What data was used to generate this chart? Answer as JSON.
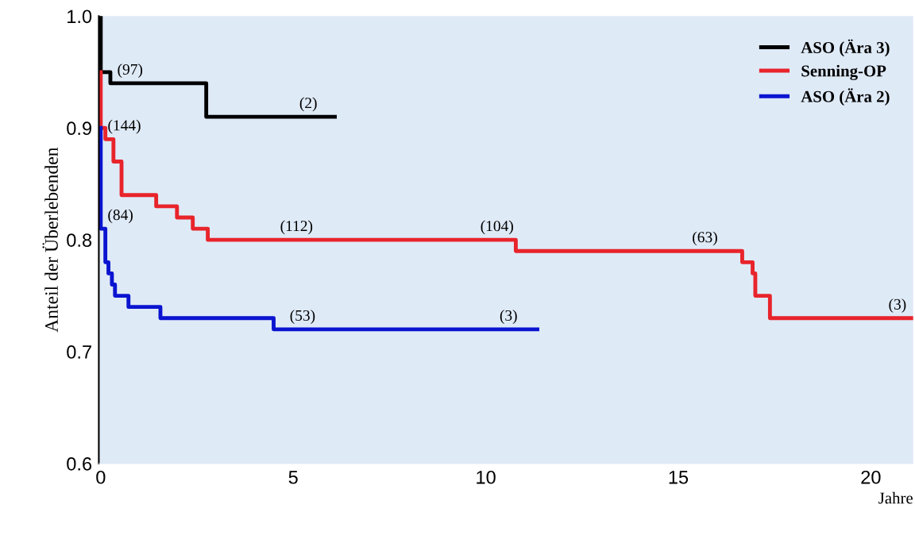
{
  "chart_data": {
    "type": "step",
    "ylabel": "Anteil der Überlebenden",
    "xlabel": "Jahre",
    "xlim": [
      -0.05,
      21.1
    ],
    "xticks": [
      0,
      5,
      10,
      15,
      20
    ],
    "ylim": [
      0.6,
      1.0
    ],
    "yticks": [
      {
        "value": 0.6,
        "label": "0.6"
      },
      {
        "value": 0.7,
        "label": "0.7"
      },
      {
        "value": 0.8,
        "label": "0.8"
      },
      {
        "value": 0.9,
        "label": "0.9"
      },
      {
        "value": 1.0,
        "label": "1.0"
      }
    ],
    "series": [
      {
        "name": "ASO (Ära 3)",
        "color": "#000000",
        "x": [
          0,
          0,
          0.25,
          2.74,
          6.08
        ],
        "values": [
          1.0,
          0.95,
          0.94,
          0.91,
          0.91
        ]
      },
      {
        "name": "Senning-OP",
        "color": "#e8242b",
        "x": [
          0,
          0,
          0.12,
          0.33,
          0.54,
          1.44,
          1.98,
          2.39,
          2.78,
          10.78,
          16.66,
          16.93,
          17.0,
          17.38,
          21.1
        ],
        "values": [
          0.95,
          0.9,
          0.89,
          0.87,
          0.84,
          0.83,
          0.82,
          0.81,
          0.8,
          0.79,
          0.78,
          0.77,
          0.75,
          0.73,
          0.73
        ]
      },
      {
        "name": "ASO (Ära 2)",
        "color": "#0a14d0",
        "x": [
          0,
          0,
          0.12,
          0.2,
          0.29,
          0.37,
          0.72,
          1.55,
          4.49,
          11.34
        ],
        "values": [
          0.9,
          0.81,
          0.78,
          0.77,
          0.76,
          0.75,
          0.74,
          0.73,
          0.72,
          0.72
        ]
      }
    ],
    "annotations": [
      {
        "text": "(97)",
        "x": 0.37,
        "y": 0.94
      },
      {
        "text": "(144)",
        "x": 0.12,
        "y": 0.89
      },
      {
        "text": "(2)",
        "x": 5.1,
        "y": 0.91
      },
      {
        "text": "(84)",
        "x": 0.12,
        "y": 0.81
      },
      {
        "text": "(112)",
        "x": 4.6,
        "y": 0.8
      },
      {
        "text": "(104)",
        "x": 9.8,
        "y": 0.8
      },
      {
        "text": "(63)",
        "x": 15.3,
        "y": 0.79
      },
      {
        "text": "(3)",
        "x": 20.4,
        "y": 0.73
      },
      {
        "text": "(53)",
        "x": 4.85,
        "y": 0.72
      },
      {
        "text": "(3)",
        "x": 10.3,
        "y": 0.72
      }
    ],
    "legend": "top right",
    "grid": false
  }
}
